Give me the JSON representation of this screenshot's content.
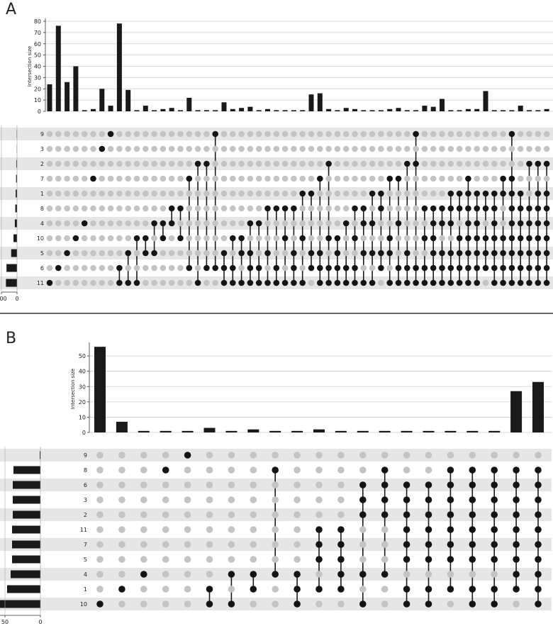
{
  "figure": {
    "panels": [
      "A",
      "B"
    ]
  },
  "chart_data": [
    {
      "panel": "A",
      "type": "bar",
      "ylabel": "Intersection size",
      "ylim": [
        0,
        80
      ],
      "yticks": [
        0,
        10,
        20,
        30,
        40,
        50,
        60,
        70,
        80
      ],
      "set_size_ticks": [
        "200",
        "0"
      ],
      "set_size_max": 200,
      "sets": [
        "9",
        "3",
        "2",
        "7",
        "1",
        "8",
        "4",
        "10",
        "5",
        "6",
        "11"
      ],
      "set_sizes": [
        4,
        3,
        8,
        12,
        17,
        22,
        28,
        45,
        75,
        135,
        142
      ],
      "values": [
        24,
        76,
        26,
        40,
        1,
        2,
        20,
        5,
        78,
        19,
        1,
        5,
        1,
        2,
        3,
        1,
        12,
        1,
        1,
        1,
        8,
        2,
        3,
        4,
        1,
        2,
        1,
        1,
        1,
        1,
        15,
        16,
        2,
        1,
        3,
        2,
        1,
        1,
        1,
        2,
        3,
        1,
        1,
        5,
        4,
        11,
        1,
        1,
        2,
        2,
        18,
        1,
        1,
        1,
        5,
        1,
        1,
        2
      ],
      "intersections": [
        [
          "11"
        ],
        [
          "6"
        ],
        [
          "5"
        ],
        [
          "10"
        ],
        [
          "4"
        ],
        [
          "7"
        ],
        [
          "3"
        ],
        [
          "9"
        ],
        [
          "6",
          "11"
        ],
        [
          "5",
          "11"
        ],
        [
          "10",
          "11"
        ],
        [
          "10",
          "5"
        ],
        [
          "4",
          "5"
        ],
        [
          "4",
          "10"
        ],
        [
          "8",
          "4"
        ],
        [
          "8",
          "10"
        ],
        [
          "7",
          "6"
        ],
        [
          "2",
          "11"
        ],
        [
          "2",
          "6"
        ],
        [
          "9",
          "6"
        ],
        [
          "5",
          "6",
          "11"
        ],
        [
          "10",
          "6",
          "11"
        ],
        [
          "10",
          "5",
          "11"
        ],
        [
          "4",
          "5",
          "6",
          "11"
        ],
        [
          "4",
          "6",
          "11"
        ],
        [
          "8",
          "5",
          "11"
        ],
        [
          "8",
          "6",
          "11"
        ],
        [
          "8",
          "10",
          "11"
        ],
        [
          "8",
          "5",
          "6",
          "11"
        ],
        [
          "1",
          "10",
          "11"
        ],
        [
          "1",
          "5",
          "6"
        ],
        [
          "7",
          "5",
          "6",
          "11"
        ],
        [
          "2",
          "10",
          "6",
          "11"
        ],
        [
          "10",
          "5",
          "6",
          "11"
        ],
        [
          "4",
          "6",
          "11"
        ],
        [
          "8",
          "10",
          "6",
          "11"
        ],
        [
          "8",
          "4",
          "5",
          "11"
        ],
        [
          "1",
          "4",
          "5",
          "11"
        ],
        [
          "1",
          "8",
          "5",
          "6"
        ],
        [
          "7",
          "10",
          "5",
          "11"
        ],
        [
          "7",
          "4",
          "6",
          "11"
        ],
        [
          "2",
          "5",
          "6",
          "11"
        ],
        [
          "9",
          "2",
          "6",
          "11"
        ],
        [
          "8",
          "10",
          "6",
          "11"
        ],
        [
          "8",
          "4",
          "10",
          "5",
          "6",
          "11"
        ],
        [
          "8",
          "4",
          "5",
          "6",
          "11"
        ],
        [
          "1",
          "8",
          "4",
          "5",
          "6",
          "11"
        ],
        [
          "1",
          "8",
          "10",
          "5",
          "6",
          "11"
        ],
        [
          "7",
          "1",
          "8",
          "4",
          "10",
          "5",
          "6",
          "11"
        ],
        [
          "1",
          "8",
          "4",
          "10",
          "5",
          "6",
          "11"
        ],
        [
          "1",
          "8",
          "10",
          "5",
          "6"
        ],
        [
          "1",
          "8",
          "4",
          "10",
          "5",
          "6",
          "11"
        ],
        [
          "7",
          "1",
          "10",
          "5",
          "6",
          "11"
        ],
        [
          "9",
          "7",
          "1",
          "8",
          "4",
          "10",
          "5",
          "6",
          "11"
        ],
        [
          "1",
          "8",
          "4",
          "10",
          "5",
          "6",
          "11"
        ],
        [
          "2",
          "8",
          "4",
          "10",
          "5",
          "6",
          "11"
        ],
        [
          "2",
          "1",
          "8",
          "4",
          "10",
          "5",
          "6",
          "11"
        ],
        [
          "2",
          "1",
          "8",
          "4",
          "10",
          "5",
          "6",
          "11"
        ]
      ]
    },
    {
      "panel": "B",
      "type": "bar",
      "ylabel": "Intersection size",
      "ylim": [
        0,
        57
      ],
      "yticks": [
        0,
        10,
        20,
        30,
        40,
        50
      ],
      "set_size_ticks": [
        "50",
        "0"
      ],
      "set_size_max": 57,
      "sets": [
        "9",
        "8",
        "6",
        "3",
        "2",
        "11",
        "7",
        "5",
        "4",
        "1",
        "10"
      ],
      "set_sizes": [
        1,
        38,
        39,
        39,
        39,
        40,
        40,
        40,
        42,
        47,
        57
      ],
      "values": [
        56,
        7,
        1,
        1,
        1,
        3,
        1,
        2,
        1,
        1,
        2,
        1,
        1,
        1,
        1,
        1,
        1,
        1,
        1,
        27,
        33
      ],
      "intersections": [
        [
          "10"
        ],
        [
          "1"
        ],
        [
          "4"
        ],
        [
          "8"
        ],
        [
          "9"
        ],
        [
          "1",
          "10"
        ],
        [
          "4",
          "10"
        ],
        [
          "4",
          "1"
        ],
        [
          "8",
          "4"
        ],
        [
          "4",
          "1",
          "10"
        ],
        [
          "11",
          "7",
          "5",
          "1"
        ],
        [
          "11",
          "7",
          "5",
          "4",
          "1"
        ],
        [
          "6",
          "3",
          "2",
          "4",
          "10"
        ],
        [
          "8",
          "6",
          "3",
          "2",
          "4"
        ],
        [
          "6",
          "3",
          "2",
          "11",
          "7",
          "5",
          "1",
          "10"
        ],
        [
          "6",
          "3",
          "2",
          "11",
          "7",
          "5",
          "1",
          "10"
        ],
        [
          "8",
          "6",
          "3",
          "2",
          "11",
          "7",
          "5",
          "1"
        ],
        [
          "8",
          "6",
          "3",
          "2",
          "11",
          "7",
          "5",
          "1",
          "10"
        ],
        [
          "8",
          "6",
          "3",
          "2",
          "11",
          "7",
          "5",
          "1",
          "10"
        ],
        [
          "8",
          "6",
          "3",
          "2",
          "11",
          "7",
          "5",
          "4",
          "1"
        ],
        [
          "8",
          "6",
          "3",
          "2",
          "11",
          "7",
          "5",
          "4",
          "1",
          "10"
        ]
      ]
    }
  ]
}
